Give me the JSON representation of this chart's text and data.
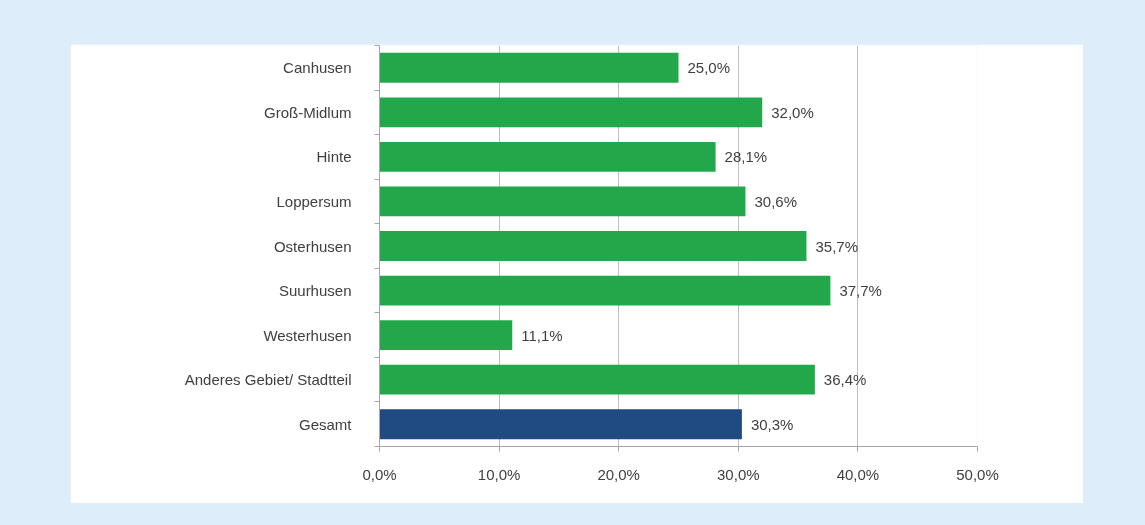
{
  "chart_data": {
    "type": "bar",
    "orientation": "horizontal",
    "categories": [
      "Canhusen",
      "Groß-Midlum",
      "Hinte",
      "Loppersum",
      "Osterhusen",
      "Suurhusen",
      "Westerhusen",
      "Anderes Gebiet/ Stadtteil",
      "Gesamt"
    ],
    "values": [
      25.0,
      32.0,
      28.1,
      30.6,
      35.7,
      37.7,
      11.1,
      36.4,
      30.3
    ],
    "colors": [
      "#22a84b",
      "#22a84b",
      "#22a84b",
      "#22a84b",
      "#22a84b",
      "#22a84b",
      "#22a84b",
      "#22a84b",
      "#1f4a82"
    ],
    "value_labels": [
      "25,0%",
      "32,0%",
      "28,1%",
      "30,6%",
      "35,7%",
      "37,7%",
      "11,1%",
      "36,4%",
      "30,3%"
    ],
    "xlim": [
      0,
      50
    ],
    "xticks": [
      {
        "value": 0,
        "label": "0,0%"
      },
      {
        "value": 10,
        "label": "10,0%"
      },
      {
        "value": 20,
        "label": "20,0%"
      },
      {
        "value": 30,
        "label": "30,0%"
      },
      {
        "value": 40,
        "label": "40,0%"
      },
      {
        "value": 50,
        "label": "50,0%"
      }
    ],
    "grid": "x"
  }
}
